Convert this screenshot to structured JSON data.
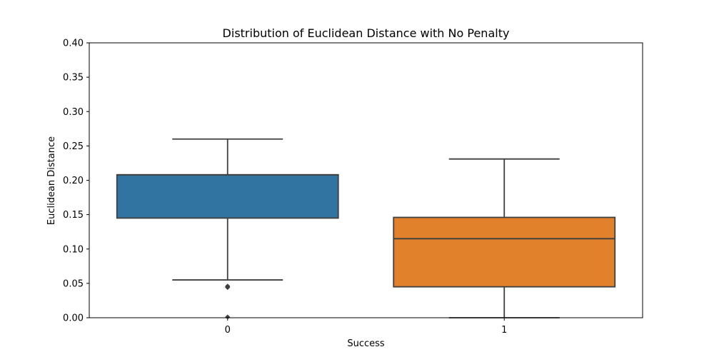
{
  "chart_data": {
    "type": "box",
    "title": "Distribution of Euclidean Distance with No Penalty",
    "xlabel": "Success",
    "ylabel": "Euclidean Distance",
    "ylim": [
      0,
      0.4
    ],
    "yticks": [
      "0.00",
      "0.05",
      "0.10",
      "0.15",
      "0.20",
      "0.25",
      "0.30",
      "0.35",
      "0.40"
    ],
    "grid": false,
    "legend": "none",
    "categories": [
      "0",
      "1"
    ],
    "boxes": [
      {
        "category": "0",
        "color": "#3274a1",
        "whisker_low": 0.055,
        "q1": 0.145,
        "median": 0.208,
        "q3": 0.208,
        "whisker_high": 0.26,
        "outliers": [
          0.044,
          0.045,
          0.046,
          0.001
        ]
      },
      {
        "category": "1",
        "color": "#e1812c",
        "whisker_low": 0.0,
        "q1": 0.045,
        "median": 0.115,
        "q3": 0.146,
        "whisker_high": 0.231,
        "outliers": []
      }
    ]
  }
}
